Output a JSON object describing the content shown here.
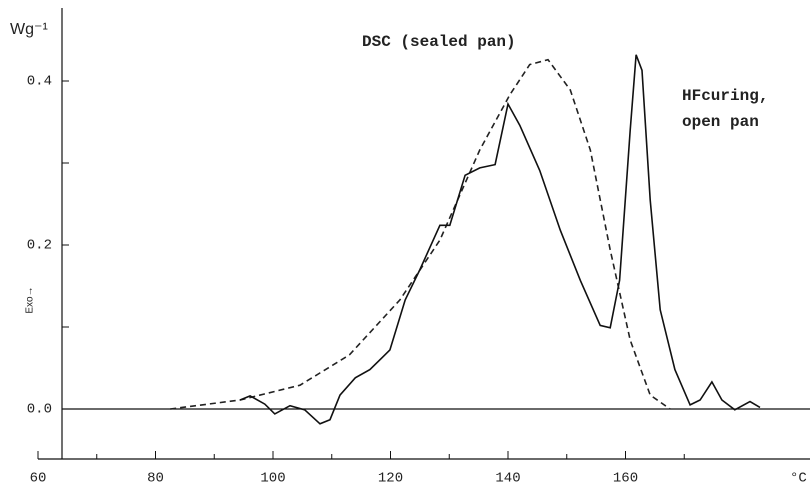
{
  "chart_data": {
    "type": "line",
    "y_label": "Wg⁻¹",
    "y_axis_title": "Exo→",
    "x_unit": "°C",
    "annotations": [
      "DSC (sealed pan)",
      "HFcuring,",
      "open pan"
    ],
    "xlim": [
      60,
      190
    ],
    "xticks": [
      60,
      80,
      100,
      120,
      140,
      160
    ],
    "xminor": [
      70,
      90,
      110,
      130,
      150,
      170
    ],
    "ylim": [
      -0.06,
      0.49
    ],
    "yticks": [
      {
        "value": 0,
        "label": "0.0"
      },
      {
        "value": 0.2,
        "label": "0.2"
      },
      {
        "value": 0.4,
        "label": "0.4"
      }
    ],
    "yminor": [
      0.1,
      0.3
    ],
    "series": [
      {
        "name": "DSC (sealed pan)",
        "color": "#222222",
        "dash": "6,4",
        "x": [
          82.5,
          94.4,
          104.6,
          113,
          121.6,
          128.4,
          135.2,
          140.3,
          143.7,
          146.8,
          150.6,
          154,
          157.4,
          160.8,
          164.2,
          167.6
        ],
        "values": [
          0,
          0.011,
          0.029,
          0.066,
          0.133,
          0.206,
          0.316,
          0.383,
          0.42,
          0.426,
          0.389,
          0.316,
          0.194,
          0.084,
          0.017,
          0
        ]
      },
      {
        "name": "HFcuring, open pan",
        "color": "#111111",
        "dash": "none",
        "x": [
          94.4,
          96.1,
          98.6,
          100.3,
          102.9,
          105.4,
          108,
          109.7,
          111.4,
          114,
          116.5,
          119.9,
          122.5,
          125,
          128.4,
          130.1,
          132.7,
          135.2,
          137.8,
          140,
          142,
          145.4,
          148.9,
          152.3,
          155.7,
          157.4,
          159,
          160.8,
          161.8,
          162.8,
          164.2,
          165.9,
          168.4,
          171,
          172.7,
          174.7,
          176.4,
          178.6,
          181.2,
          182.9
        ],
        "values": [
          0.011,
          0.016,
          0.006,
          -0.006,
          0.004,
          -0.001,
          -0.018,
          -0.013,
          0.017,
          0.038,
          0.048,
          0.072,
          0.133,
          0.17,
          0.224,
          0.224,
          0.285,
          0.294,
          0.298,
          0.372,
          0.346,
          0.291,
          0.218,
          0.157,
          0.102,
          0.099,
          0.157,
          0.34,
          0.432,
          0.413,
          0.255,
          0.121,
          0.048,
          0.005,
          0.011,
          0.033,
          0.011,
          -0.001,
          0.009,
          0.002
        ]
      }
    ]
  }
}
